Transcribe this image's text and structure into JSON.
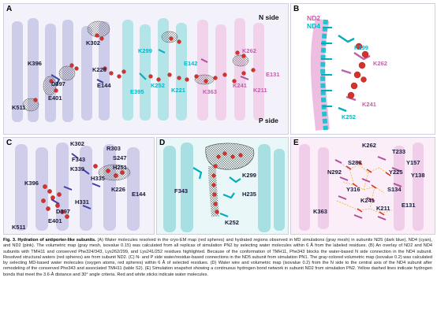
{
  "panelA": {
    "label": "A",
    "n_side": "N side",
    "p_side": "P side",
    "residues": [
      {
        "id": "k302",
        "text": "K302",
        "cls": "dark"
      },
      {
        "id": "k396",
        "text": "K396",
        "cls": "dark"
      },
      {
        "id": "d397",
        "text": "D397",
        "cls": "dark"
      },
      {
        "id": "e401",
        "text": "E401",
        "cls": "dark"
      },
      {
        "id": "k511",
        "text": "K511",
        "cls": "dark"
      },
      {
        "id": "k226",
        "text": "K226",
        "cls": "dark"
      },
      {
        "id": "e144",
        "text": "E144",
        "cls": "dark"
      },
      {
        "id": "k299",
        "text": "K299",
        "cls": "cyan"
      },
      {
        "id": "e142",
        "text": "E142",
        "cls": "cyan"
      },
      {
        "id": "e395",
        "text": "E395",
        "cls": "cyan"
      },
      {
        "id": "k252",
        "text": "K252",
        "cls": "cyan"
      },
      {
        "id": "k221",
        "text": "K221",
        "cls": "cyan"
      },
      {
        "id": "k262",
        "text": "K262",
        "cls": "pink"
      },
      {
        "id": "e131",
        "text": "E131",
        "cls": "pink"
      },
      {
        "id": "k363",
        "text": "K363",
        "cls": "pink"
      },
      {
        "id": "k241",
        "text": "K241",
        "cls": "pink"
      },
      {
        "id": "k211",
        "text": "K211",
        "cls": "pink"
      }
    ]
  },
  "panelB": {
    "label": "B",
    "legend_nd2": "ND2",
    "legend_nd4": "ND4",
    "residues": [
      {
        "text": "K299",
        "cls": "cyan"
      },
      {
        "text": "K262",
        "cls": "pink"
      },
      {
        "text": "K241",
        "cls": "pink"
      },
      {
        "text": "K252",
        "cls": "cyan"
      }
    ]
  },
  "panelC": {
    "label": "C",
    "residues": [
      {
        "text": "K302",
        "cls": "dark"
      },
      {
        "text": "R303",
        "cls": "dark"
      },
      {
        "text": "F343",
        "cls": "dark"
      },
      {
        "text": "S247",
        "cls": "dark"
      },
      {
        "text": "K339",
        "cls": "dark"
      },
      {
        "text": "H251",
        "cls": "dark"
      },
      {
        "text": "H335",
        "cls": "dark"
      },
      {
        "text": "K396",
        "cls": "dark"
      },
      {
        "text": "K226",
        "cls": "dark"
      },
      {
        "text": "E144",
        "cls": "dark"
      },
      {
        "text": "H331",
        "cls": "dark"
      },
      {
        "text": "D397",
        "cls": "dark"
      },
      {
        "text": "E401",
        "cls": "dark"
      },
      {
        "text": "K511",
        "cls": "dark"
      }
    ]
  },
  "panelD": {
    "label": "D",
    "residues": [
      {
        "text": "K299",
        "cls": "dark"
      },
      {
        "text": "F343",
        "cls": "dark"
      },
      {
        "text": "H235",
        "cls": "dark"
      },
      {
        "text": "K252",
        "cls": "dark"
      }
    ]
  },
  "panelE": {
    "label": "E",
    "residues": [
      {
        "text": "K262",
        "cls": "dark"
      },
      {
        "text": "T233",
        "cls": "dark"
      },
      {
        "text": "S288",
        "cls": "dark"
      },
      {
        "text": "Y157",
        "cls": "dark"
      },
      {
        "text": "N292",
        "cls": "dark"
      },
      {
        "text": "Y225",
        "cls": "dark"
      },
      {
        "text": "Y138",
        "cls": "dark"
      },
      {
        "text": "Y316",
        "cls": "dark"
      },
      {
        "text": "S134",
        "cls": "dark"
      },
      {
        "text": "K241",
        "cls": "dark"
      },
      {
        "text": "K363",
        "cls": "dark"
      },
      {
        "text": "K211",
        "cls": "dark"
      },
      {
        "text": "E131",
        "cls": "dark"
      }
    ]
  },
  "caption": {
    "title": "Fig. 3. Hydration of antiporter-like subunits.",
    "text_a": "(A) Water molecules resolved in the cryo-EM map (red spheres) and hydrated regions observed in MD simulations (gray mesh) in subunits ND5 (dark blue), ND4 (cyan), and ND2 (pink). The volumetric map (gray mesh, isovalue 0.15) was calculated from all replicas of simulation PN2 by selecting water molecules within 6 Å from the labeled residues.",
    "text_b": "(B) An overlay of ND2 and ND4 subunits with TMH11 and conserved Phe324/343, Lys262/299, and Lys241/252 residues highlighted. Because of the conformation of TMH11, Phe343 blocks the water-based N side connection in the ND4 subunit. Resolved structural waters (red spheres) are from subunit ND2.",
    "text_c": "(C) N- and P side water/residue-based connections in the ND5 subunit from simulation PN1. The gray-colored volumetric map (isovalue 0.2) was calculated by selecting MD-based water molecules (oxygen atoms, red spheres) within 6 Å of selected residues.",
    "text_d": "(D) Water wire and volumetric map (isovalue 0.2) from the N side to the central axis of the ND4 subunit after remodeling of the conserved Phe343 and associated TMH11 (table S2).",
    "text_e": "(E) Simulation snapshot showing a continuous hydrogen bond network in subunit ND2 from simulation PN2. Yellow dashed lines indicate hydrogen bonds that meet the 3.6-Å distance and 30° angle criteria. Red and white sticks indicate water molecules."
  },
  "colors": {
    "nd5": "#b9b8df",
    "nd4": "#5fd3db",
    "nd2": "#e9b9e1",
    "water": "#d8302a",
    "mesh": "#7a7a7a"
  }
}
